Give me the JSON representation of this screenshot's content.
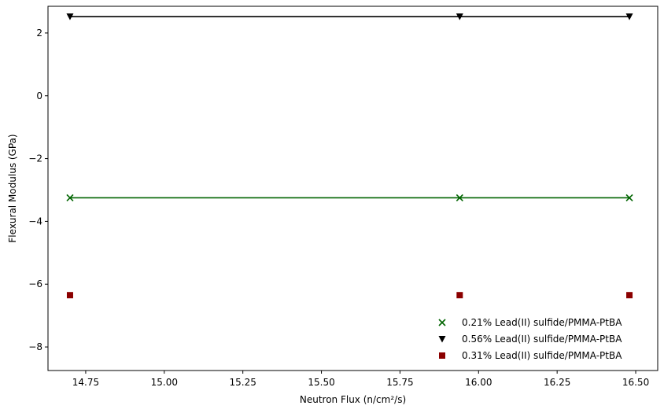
{
  "chart_data": {
    "type": "line",
    "title": "",
    "xlabel": "Neutron Flux (n/cm²/s)",
    "ylabel": "Flexural Modulus (GPa)",
    "xlim": [
      14.63,
      16.57
    ],
    "ylim": [
      -8.75,
      2.85
    ],
    "xticks": [
      14.75,
      15.0,
      15.25,
      15.5,
      15.75,
      16.0,
      16.25,
      16.5
    ],
    "xtick_labels": [
      "14.75",
      "15.00",
      "15.25",
      "15.50",
      "15.75",
      "16.00",
      "16.25",
      "16.50"
    ],
    "yticks": [
      -8,
      -6,
      -4,
      -2,
      0,
      2
    ],
    "ytick_labels": [
      "−8",
      "−6",
      "−4",
      "−2",
      "0",
      "2"
    ],
    "grid": false,
    "legend_position": "lower-right",
    "x": [
      14.7,
      15.94,
      16.48
    ],
    "series": [
      {
        "name": "0.21% Lead(II) sulfide/PMMA-PtBA",
        "marker": "x",
        "color": "#006400",
        "line": true,
        "values": [
          -3.25,
          -3.25,
          -3.25
        ]
      },
      {
        "name": "0.56% Lead(II) sulfide/PMMA-PtBA",
        "marker": "triangle-down",
        "color": "#000000",
        "line": true,
        "values": [
          2.52,
          2.52,
          2.52
        ]
      },
      {
        "name": "0.31% Lead(II) sulfide/PMMA-PtBA",
        "marker": "square",
        "color": "#8b0000",
        "line": false,
        "values": [
          -6.35,
          -6.35,
          -6.35
        ]
      }
    ]
  }
}
